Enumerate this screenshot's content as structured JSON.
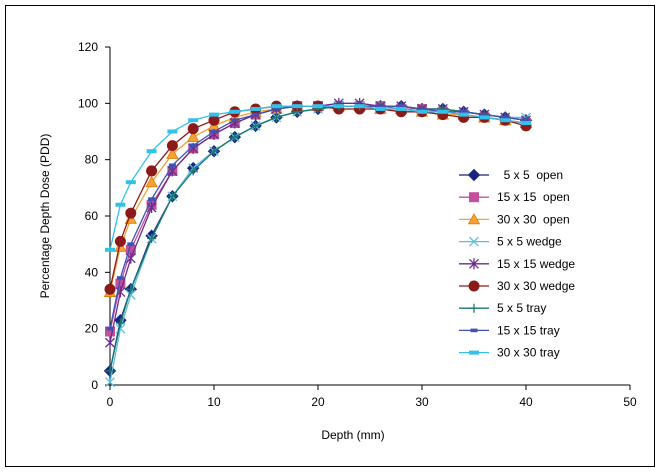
{
  "chart_data": {
    "type": "line",
    "xlabel": "Depth (mm)",
    "ylabel": "Percentage Depth Dose (PDD)",
    "xlim": [
      0,
      50
    ],
    "ylim": [
      0,
      120
    ],
    "xticks": [
      "0",
      "10",
      "20",
      "30",
      "40",
      "50"
    ],
    "yticks": [
      "0",
      "20",
      "40",
      "60",
      "80",
      "100",
      "120"
    ],
    "grid": false,
    "legend_position": "right",
    "x": [
      0,
      1,
      2,
      4,
      6,
      8,
      10,
      12,
      14,
      16,
      18,
      20,
      22,
      24,
      26,
      28,
      30,
      32,
      34,
      36,
      38,
      40
    ],
    "series": [
      {
        "name": "5 x 5  open",
        "color": "#1a237e",
        "marker": "diamond",
        "values": [
          5,
          23,
          34,
          53,
          67,
          77,
          83,
          88,
          92,
          95,
          97,
          98,
          99,
          99,
          99,
          99,
          98,
          98,
          97,
          96,
          95,
          94
        ]
      },
      {
        "name": "15 x 15  open",
        "color": "#c2509a",
        "marker": "square",
        "values": [
          19,
          36,
          48,
          64,
          76,
          84,
          89,
          93,
          96,
          98,
          99,
          99,
          99,
          99,
          99,
          98,
          98,
          97,
          96,
          95,
          94,
          93
        ]
      },
      {
        "name": "30 x 30  open",
        "color": "#f4a235",
        "marker": "triangle",
        "values": [
          33,
          49,
          59,
          72,
          82,
          88,
          92,
          95,
          97,
          98,
          99,
          99,
          99,
          99,
          98,
          98,
          97,
          96,
          96,
          95,
          94,
          93
        ]
      },
      {
        "name": "5 x 5 wedge",
        "color": "#5bc0de",
        "marker": "x",
        "values": [
          1,
          20,
          32,
          52,
          67,
          77,
          83,
          88,
          92,
          95,
          97,
          98,
          99,
          99,
          99,
          99,
          98,
          98,
          97,
          96,
          95,
          95
        ]
      },
      {
        "name": "15 x 15 wedge",
        "color": "#6a2c8e",
        "marker": "star",
        "values": [
          15,
          33,
          45,
          63,
          76,
          84,
          89,
          93,
          96,
          98,
          99,
          99,
          100,
          100,
          99,
          99,
          98,
          98,
          97,
          96,
          95,
          94
        ]
      },
      {
        "name": "30 x 30 wedge",
        "color": "#8b1a1a",
        "marker": "circle",
        "values": [
          34,
          51,
          61,
          76,
          85,
          91,
          94,
          97,
          98,
          99,
          99,
          99,
          98,
          98,
          98,
          97,
          97,
          96,
          95,
          95,
          94,
          92
        ]
      },
      {
        "name": "5 x 5 tray",
        "color": "#1b7a6e",
        "marker": "plus",
        "values": [
          5,
          22,
          34,
          52,
          67,
          76,
          83,
          88,
          92,
          95,
          97,
          98,
          99,
          99,
          99,
          99,
          98,
          98,
          97,
          96,
          95,
          94
        ]
      },
      {
        "name": "15 x 15 tray",
        "color": "#3f51b5",
        "marker": "dash",
        "values": [
          20,
          38,
          50,
          66,
          78,
          85,
          90,
          94,
          96,
          98,
          99,
          99,
          99,
          99,
          99,
          99,
          98,
          97,
          97,
          96,
          95,
          94
        ]
      },
      {
        "name": "30 x 30 tray",
        "color": "#33c1e8",
        "marker": "bar",
        "values": [
          48,
          64,
          72,
          83,
          90,
          94,
          96,
          97,
          98,
          99,
          99,
          99,
          99,
          99,
          98,
          98,
          97,
          97,
          96,
          95,
          94,
          93
        ]
      }
    ]
  }
}
